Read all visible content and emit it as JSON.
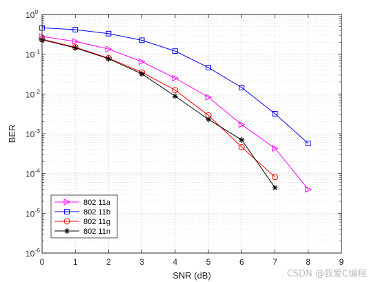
{
  "chart_data": {
    "type": "line",
    "title": "",
    "xlabel": "SNR (dB)",
    "ylabel": "BER",
    "xlim": [
      0,
      9
    ],
    "ylim": [
      1e-06,
      1
    ],
    "yscale": "log",
    "grid": true,
    "minor_grid": true,
    "legend_position": "bottom-left",
    "x_ticks": [
      "0",
      "1",
      "2",
      "3",
      "4",
      "5",
      "6",
      "7",
      "8",
      "9"
    ],
    "y_ticks": [
      {
        "value": 1e-06,
        "base": "10",
        "exp": "-6"
      },
      {
        "value": 1e-05,
        "base": "10",
        "exp": "-5"
      },
      {
        "value": 0.0001,
        "base": "10",
        "exp": "-4"
      },
      {
        "value": 0.001,
        "base": "10",
        "exp": "-3"
      },
      {
        "value": 0.01,
        "base": "10",
        "exp": "-2"
      },
      {
        "value": 0.1,
        "base": "10",
        "exp": "-1"
      },
      {
        "value": 1,
        "base": "10",
        "exp": "0"
      }
    ],
    "series": [
      {
        "name": "802 11a",
        "color": "#ff00ff",
        "marker": "triangle-right",
        "x": [
          0,
          1,
          2,
          3,
          4,
          5,
          6,
          7,
          8
        ],
        "y": [
          0.28,
          0.21,
          0.135,
          0.065,
          0.025,
          0.0083,
          0.0017,
          0.00043,
          4e-05
        ]
      },
      {
        "name": "802 11b",
        "color": "#0000ff",
        "marker": "square",
        "x": [
          0,
          1,
          2,
          3,
          4,
          5,
          6,
          7,
          8
        ],
        "y": [
          0.46,
          0.415,
          0.33,
          0.225,
          0.12,
          0.046,
          0.0145,
          0.0032,
          0.00057
        ]
      },
      {
        "name": "802 11g",
        "color": "#ff0000",
        "marker": "circle",
        "x": [
          0,
          1,
          2,
          3,
          4,
          5,
          6,
          7
        ],
        "y": [
          0.24,
          0.15,
          0.08,
          0.035,
          0.0125,
          0.0029,
          0.00046,
          8.2e-05
        ]
      },
      {
        "name": "802 11n",
        "color": "#000000",
        "marker": "asterisk",
        "x": [
          0,
          1,
          2,
          3,
          4,
          5,
          6,
          7
        ],
        "y": [
          0.23,
          0.145,
          0.077,
          0.032,
          0.0088,
          0.0023,
          0.0007,
          4.4e-05
        ]
      }
    ]
  },
  "watermark": "CSDN @我爱C编程"
}
